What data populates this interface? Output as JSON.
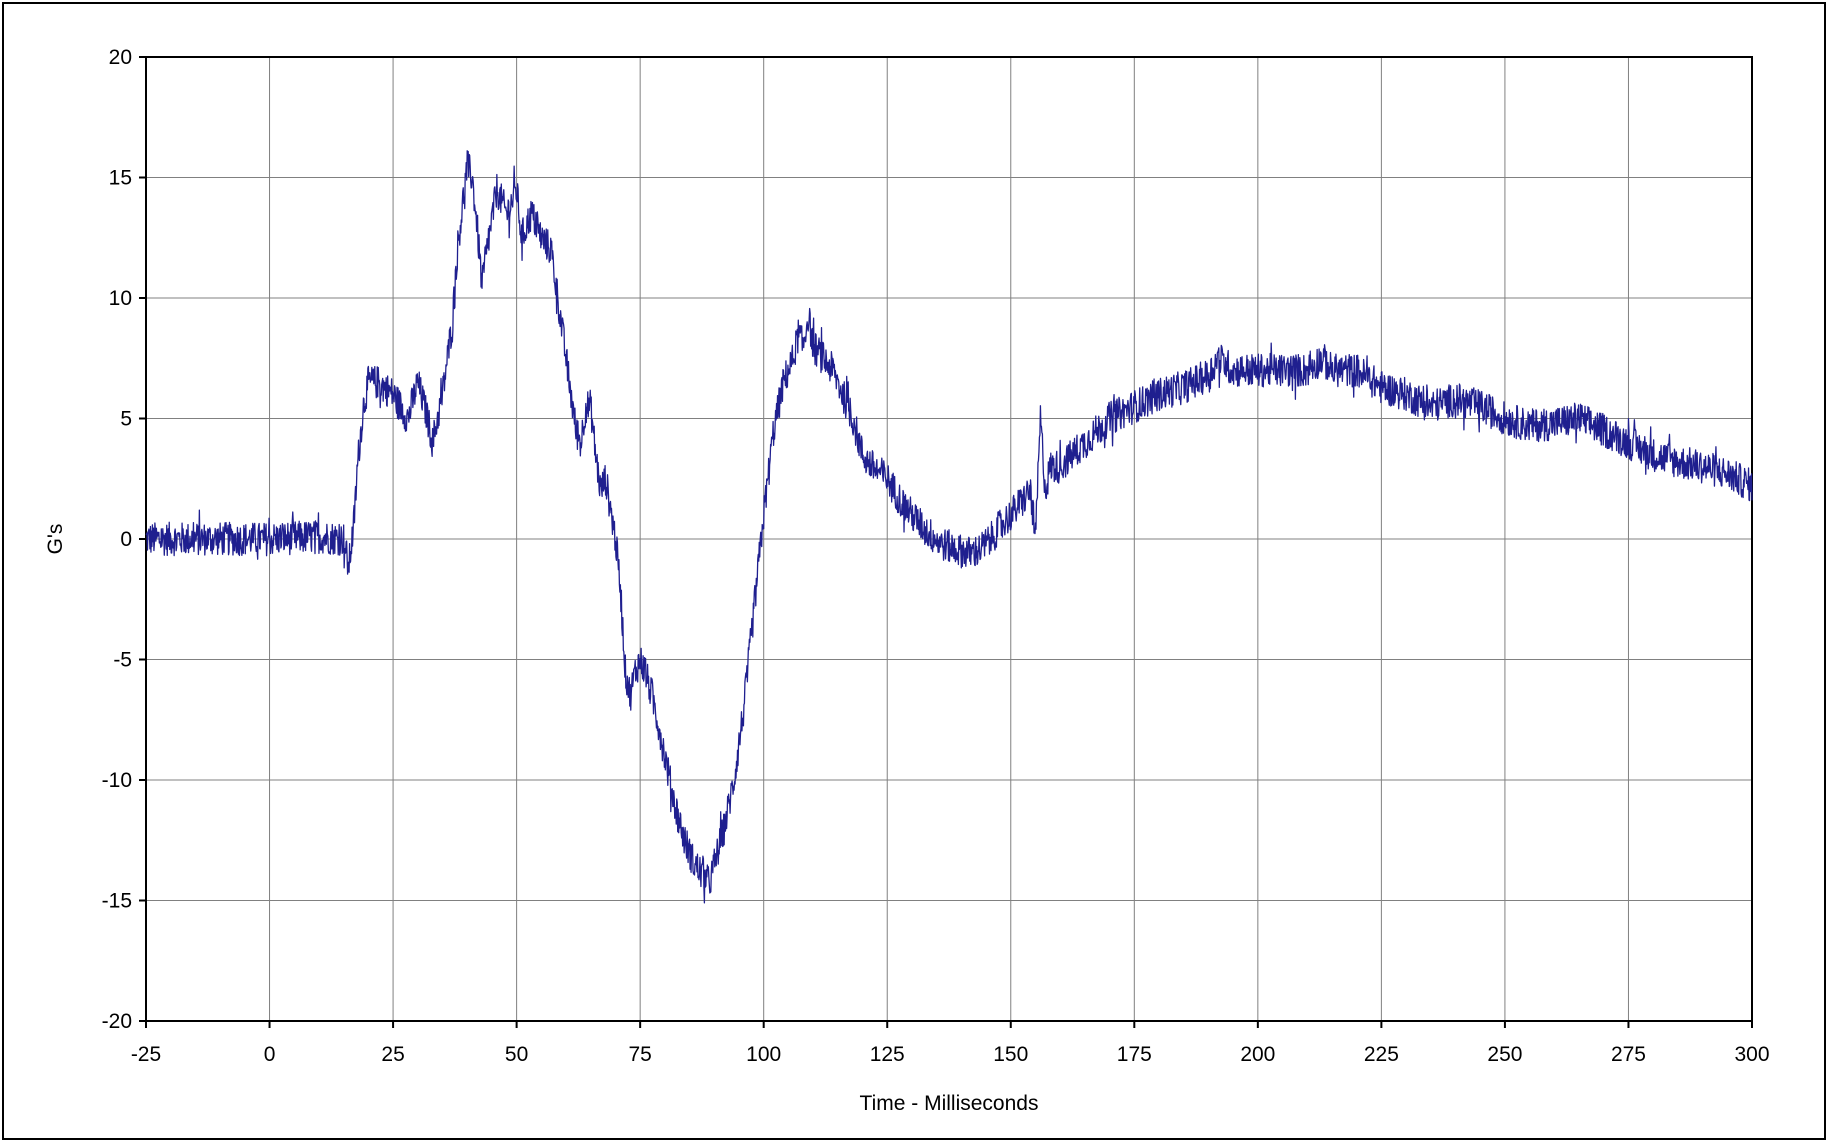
{
  "chart_data": {
    "type": "line",
    "title": "",
    "xlabel": "Time - Milliseconds",
    "ylabel": "G's",
    "xlim": [
      -25,
      300
    ],
    "ylim": [
      -20,
      20
    ],
    "x_ticks": [
      -25,
      0,
      25,
      50,
      75,
      100,
      125,
      150,
      175,
      200,
      225,
      250,
      275,
      300
    ],
    "y_ticks": [
      -20,
      -15,
      -10,
      -5,
      0,
      5,
      10,
      15,
      20
    ],
    "grid": true,
    "legend": "none",
    "line_color": "#1f1f8f",
    "grid_color": "#808080",
    "noise_amplitude": 0.7,
    "series": [
      {
        "x": [
          -25,
          -10,
          0,
          10,
          15,
          16,
          17,
          18,
          19,
          20,
          22,
          25,
          28,
          30,
          32,
          33,
          35,
          37,
          38,
          40,
          41,
          42,
          43,
          44,
          46,
          48,
          50,
          51,
          53,
          55,
          57,
          58,
          59,
          60,
          61,
          62,
          63,
          64,
          65,
          66,
          67,
          68,
          70,
          71,
          72,
          73,
          74,
          75,
          76,
          78,
          80,
          82,
          84,
          86,
          88,
          89,
          90,
          92,
          94,
          96,
          98,
          100,
          102,
          104,
          106,
          107,
          108,
          109,
          110,
          112,
          114,
          116,
          118,
          120,
          122,
          125,
          128,
          130,
          133,
          136,
          140,
          142,
          144,
          146,
          148,
          150,
          152,
          154,
          155,
          156,
          157,
          158,
          160,
          165,
          170,
          175,
          180,
          185,
          190,
          192,
          195,
          200,
          205,
          210,
          213,
          215,
          220,
          225,
          230,
          235,
          240,
          245,
          250,
          255,
          260,
          265,
          270,
          275,
          280,
          285,
          290,
          295,
          300
        ],
        "y": [
          0,
          0,
          0,
          0.1,
          0,
          -1.2,
          0.5,
          3.5,
          5.5,
          6.5,
          6.5,
          6.0,
          5.0,
          6.5,
          5.0,
          4.0,
          6.0,
          9.0,
          12.0,
          15.5,
          15.0,
          13.0,
          10.5,
          12.0,
          14.5,
          13.5,
          14.5,
          12.5,
          13.5,
          12.5,
          12.0,
          10.5,
          9.0,
          7.5,
          6.0,
          4.5,
          4.0,
          5.5,
          5.5,
          3.5,
          2.0,
          2.5,
          0.0,
          -2.0,
          -5.5,
          -6.5,
          -5.5,
          -5.0,
          -5.5,
          -7.0,
          -9.0,
          -11.0,
          -12.5,
          -13.5,
          -14.0,
          -14.3,
          -13.5,
          -12.0,
          -10.0,
          -7.0,
          -3.0,
          1.0,
          4.5,
          6.5,
          7.5,
          8.5,
          8.0,
          9.3,
          8.0,
          7.5,
          7.0,
          6.0,
          5.0,
          3.5,
          3.0,
          2.5,
          1.5,
          1.0,
          0.3,
          -0.2,
          -0.5,
          -0.6,
          -0.4,
          0,
          0.6,
          1.0,
          1.5,
          2.0,
          0.0,
          5.0,
          2.0,
          3.0,
          3.0,
          4.0,
          5.0,
          5.5,
          6.0,
          6.3,
          6.8,
          7.5,
          7.0,
          7.0,
          7.0,
          7.0,
          7.5,
          7.0,
          7.0,
          6.3,
          6.0,
          5.5,
          5.8,
          5.5,
          5.0,
          4.7,
          4.8,
          5.0,
          4.5,
          4.0,
          3.5,
          3.2,
          3.0,
          2.7,
          2.2
        ]
      }
    ]
  }
}
